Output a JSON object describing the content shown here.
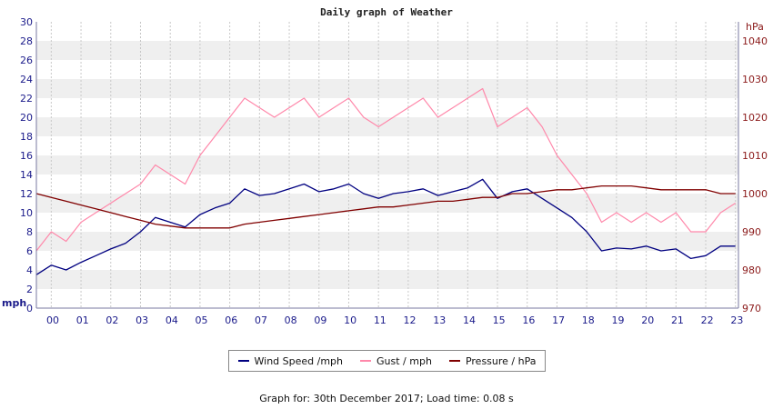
{
  "chart_data": {
    "type": "line",
    "title": "Daily graph of Weather",
    "x_tick_labels": [
      "00",
      "01",
      "02",
      "03",
      "04",
      "05",
      "06",
      "07",
      "08",
      "09",
      "10",
      "11",
      "12",
      "13",
      "14",
      "15",
      "16",
      "17",
      "18",
      "19",
      "20",
      "21",
      "22",
      "23"
    ],
    "x_range_hours": [
      0,
      23.6
    ],
    "y_left": {
      "unit": "mph",
      "ylim": [
        0,
        30
      ],
      "ticks": [
        0,
        2,
        4,
        6,
        8,
        10,
        12,
        14,
        16,
        18,
        20,
        22,
        24,
        26,
        28,
        30
      ]
    },
    "y_right": {
      "unit": "hPa",
      "ylim": [
        970,
        1045
      ],
      "ticks": [
        970,
        980,
        990,
        1000,
        1010,
        1020,
        1030,
        1040
      ]
    },
    "grid": "horizontal alternating bands",
    "legend_placement": "bottom-center",
    "series": [
      {
        "name": "Wind Speed /mph",
        "axis": "left",
        "color": "#000080",
        "x": [
          0,
          0.5,
          1,
          1.5,
          2,
          2.5,
          3,
          3.5,
          4,
          4.5,
          5,
          5.5,
          6,
          6.5,
          7,
          7.5,
          8,
          8.5,
          9,
          9.5,
          10,
          10.5,
          11,
          11.5,
          12,
          12.5,
          13,
          13.5,
          14,
          14.5,
          15,
          15.5,
          16,
          16.5,
          17,
          17.5,
          18,
          18.5,
          19,
          19.5,
          20,
          20.5,
          21,
          21.5,
          22,
          22.5,
          23,
          23.5
        ],
        "values": [
          3.5,
          4.5,
          4,
          4.8,
          5.5,
          6.2,
          6.8,
          8,
          9.5,
          9,
          8.5,
          9.8,
          10.5,
          11,
          12.5,
          11.8,
          12,
          12.5,
          13,
          12.2,
          12.5,
          13,
          12,
          11.5,
          12,
          12.2,
          12.5,
          11.8,
          12.2,
          12.6,
          13.5,
          11.5,
          12.2,
          12.5,
          11.5,
          10.5,
          9.5,
          8,
          6,
          6.3,
          6.2,
          6.5,
          6,
          6.2,
          5.2,
          5.5,
          6.5,
          6.5
        ]
      },
      {
        "name": "Gust / mph",
        "axis": "left",
        "color": "#ff88aa",
        "x": [
          0,
          0.5,
          1,
          1.5,
          2,
          2.5,
          3,
          3.5,
          4,
          4.5,
          5,
          5.5,
          6,
          6.5,
          7,
          7.5,
          8,
          8.5,
          9,
          9.5,
          10,
          10.5,
          11,
          11.5,
          12,
          12.5,
          13,
          13.5,
          14,
          14.5,
          15,
          15.5,
          16,
          16.5,
          17,
          17.5,
          18,
          18.5,
          19,
          19.5,
          20,
          20.5,
          21,
          21.5,
          22,
          22.5,
          23,
          23.5
        ],
        "values": [
          6,
          8,
          7,
          9,
          10,
          11,
          12,
          13,
          15,
          14,
          13,
          16,
          18,
          20,
          22,
          21,
          20,
          21,
          22,
          20,
          21,
          22,
          20,
          19,
          20,
          21,
          22,
          20,
          21,
          22,
          23,
          19,
          20,
          21,
          19,
          16,
          14,
          12,
          9,
          10,
          9,
          10,
          9,
          10,
          8,
          8,
          10,
          11
        ]
      },
      {
        "name": "Pressure / hPa",
        "axis": "right",
        "color": "#800000",
        "x": [
          0,
          0.5,
          1,
          1.5,
          2,
          2.5,
          3,
          3.5,
          4,
          4.5,
          5,
          5.5,
          6,
          6.5,
          7,
          7.5,
          8,
          8.5,
          9,
          9.5,
          10,
          10.5,
          11,
          11.5,
          12,
          12.5,
          13,
          13.5,
          14,
          14.5,
          15,
          15.5,
          16,
          16.5,
          17,
          17.5,
          18,
          18.5,
          19,
          19.5,
          20,
          20.5,
          21,
          21.5,
          22,
          22.5,
          23,
          23.5
        ],
        "values": [
          1000,
          999,
          998,
          997,
          996,
          995,
          994,
          993,
          992,
          991.5,
          991,
          991,
          991,
          991,
          992,
          992.5,
          993,
          993.5,
          994,
          994.5,
          995,
          995.5,
          996,
          996.5,
          996.5,
          997,
          997.5,
          998,
          998,
          998.5,
          999,
          999,
          1000,
          1000,
          1000.5,
          1001,
          1001,
          1001.5,
          1002,
          1002,
          1002,
          1001.5,
          1001,
          1001,
          1001,
          1001,
          1000,
          1000
        ]
      }
    ]
  },
  "footer": {
    "label": "Graph for:",
    "date": "30th December 2017",
    "load_label": "Load time:",
    "load_value": "0.08 s"
  }
}
